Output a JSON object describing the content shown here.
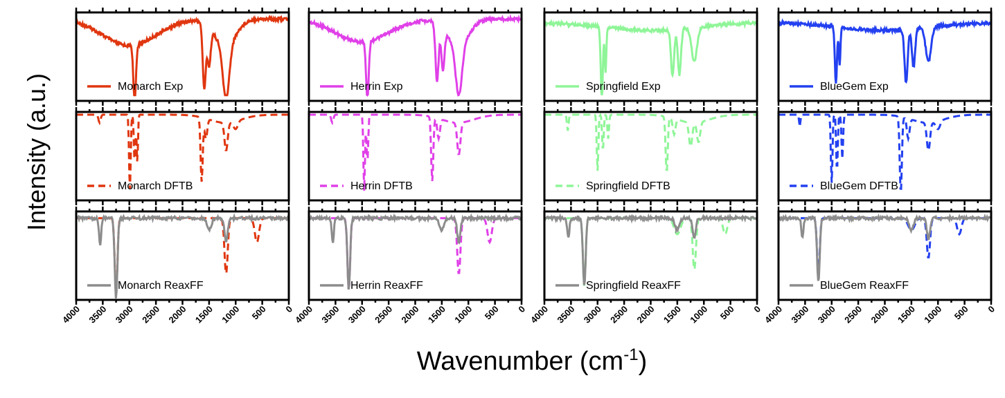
{
  "figure": {
    "ylabel": "Intensity (a.u.)",
    "xlabel_main": "Wavenumber (cm",
    "xlabel_sup": "-1",
    "xlabel_close": ")"
  },
  "chart_data": {
    "type": "line",
    "description_axes": {
      "x_ticks": [
        "4000",
        "3500",
        "3000",
        "2500",
        "2000",
        "1500",
        "1000",
        "500",
        "0"
      ],
      "xlim": [
        4000,
        0
      ],
      "x_reversed": true
    },
    "colors": {
      "Monarch": "#e0360f",
      "Herrin": "#e040e8",
      "Springfield": "#8ff598",
      "BlueGem": "#2340f0",
      "ReaxFF": "#8c8c8c"
    },
    "columns": [
      "Monarch",
      "Herrin",
      "Springfield",
      "BlueGem"
    ],
    "rows": [
      "Exp",
      "DFTB",
      "ReaxFF"
    ],
    "panels": [
      [
        {
          "legend": "Monarch Exp",
          "style": "solid",
          "color": "#e0360f",
          "peaks": [
            [
              2900,
              0.75,
              25
            ],
            [
              1590,
              0.85,
              30
            ],
            [
              1180,
              0.7,
              60
            ],
            [
              1500,
              0.5,
              30
            ]
          ],
          "baseline": 0.05,
          "broad": [
            [
              3000,
              0.35,
              500
            ],
            [
              1200,
              0.35,
              200
            ]
          ]
        },
        {
          "legend": "Herrin Exp",
          "style": "solid",
          "color": "#e040e8",
          "peaks": [
            [
              2900,
              0.75,
              25
            ],
            [
              1590,
              0.75,
              30
            ],
            [
              1180,
              0.65,
              60
            ],
            [
              1480,
              0.55,
              30
            ]
          ],
          "baseline": 0.05,
          "broad": [
            [
              3000,
              0.3,
              500
            ],
            [
              1200,
              0.35,
              200
            ]
          ]
        },
        {
          "legend": "Springfield Exp",
          "style": "solid",
          "color": "#8ff598",
          "peaks": [
            [
              2920,
              0.95,
              20
            ],
            [
              2850,
              0.6,
              15
            ],
            [
              1590,
              0.6,
              30
            ],
            [
              1460,
              0.6,
              30
            ],
            [
              1180,
              0.45,
              50
            ]
          ],
          "baseline": 0.1,
          "broad": [
            [
              2000,
              0.1,
              800
            ]
          ]
        },
        {
          "legend": "BlueGem Exp",
          "style": "solid",
          "color": "#2340f0",
          "peaks": [
            [
              2920,
              0.75,
              20
            ],
            [
              2850,
              0.5,
              15
            ],
            [
              1600,
              0.7,
              30
            ],
            [
              1460,
              0.5,
              30
            ],
            [
              1180,
              0.45,
              50
            ]
          ],
          "baseline": 0.1,
          "broad": [
            [
              2000,
              0.1,
              800
            ]
          ]
        }
      ],
      [
        {
          "legend": "Monarch DFTB",
          "style": "dashed",
          "color": "#e0360f",
          "peaks": [
            [
              3560,
              0.1,
              20
            ],
            [
              2990,
              0.95,
              15
            ],
            [
              2900,
              0.6,
              15
            ],
            [
              2850,
              0.6,
              12
            ],
            [
              1640,
              0.8,
              20
            ],
            [
              1560,
              0.25,
              25
            ],
            [
              1180,
              0.35,
              30
            ],
            [
              1000,
              0.1,
              40
            ]
          ],
          "baseline": 0.0,
          "broad": [
            [
              1200,
              0.1,
              300
            ]
          ]
        },
        {
          "legend": "Herrin DFTB",
          "style": "dashed",
          "color": "#e040e8",
          "peaks": [
            [
              3560,
              0.1,
              20
            ],
            [
              2960,
              0.95,
              15
            ],
            [
              2900,
              0.6,
              15
            ],
            [
              1680,
              0.8,
              20
            ],
            [
              1560,
              0.25,
              25
            ],
            [
              1180,
              0.4,
              30
            ]
          ],
          "baseline": 0.0,
          "broad": [
            [
              1200,
              0.1,
              300
            ]
          ]
        },
        {
          "legend": "Springfield DFTB",
          "style": "dashed",
          "color": "#8ff598",
          "peaks": [
            [
              3560,
              0.2,
              15
            ],
            [
              3000,
              0.7,
              15
            ],
            [
              2900,
              0.45,
              15
            ],
            [
              2800,
              0.3,
              15
            ],
            [
              1700,
              0.7,
              20
            ],
            [
              1560,
              0.2,
              25
            ],
            [
              1250,
              0.3,
              30
            ],
            [
              1100,
              0.25,
              30
            ]
          ],
          "baseline": 0.0,
          "broad": [
            [
              1200,
              0.1,
              300
            ]
          ]
        },
        {
          "legend": "BlueGem DFTB",
          "style": "dashed",
          "color": "#2340f0",
          "peaks": [
            [
              3600,
              0.15,
              12
            ],
            [
              3000,
              0.85,
              15
            ],
            [
              2900,
              0.7,
              15
            ],
            [
              2800,
              0.55,
              15
            ],
            [
              1700,
              0.95,
              20
            ],
            [
              1560,
              0.25,
              25
            ],
            [
              1180,
              0.35,
              30
            ],
            [
              1000,
              0.1,
              40
            ]
          ],
          "baseline": 0.0,
          "broad": [
            [
              1200,
              0.1,
              300
            ]
          ]
        }
      ],
      [
        {
          "legend": "Monarch ReaxFF",
          "style": "solid",
          "color": "#8c8c8c",
          "overlay": {
            "color": "#e0360f",
            "peaks": [
              [
                3250,
                0.95,
                25
              ],
              [
                1180,
                0.7,
                30
              ],
              [
                600,
                0.3,
                40
              ]
            ]
          },
          "peaks": [
            [
              3550,
              0.35,
              20
            ],
            [
              3250,
              1.0,
              25
            ],
            [
              1500,
              0.15,
              40
            ],
            [
              1180,
              0.3,
              30
            ]
          ],
          "baseline": 0.05
        },
        {
          "legend": "Herrin ReaxFF",
          "style": "solid",
          "color": "#8c8c8c",
          "overlay": {
            "color": "#e040e8",
            "peaks": [
              [
                3250,
                0.9,
                25
              ],
              [
                1180,
                0.7,
                30
              ],
              [
                600,
                0.3,
                40
              ]
            ]
          },
          "peaks": [
            [
              3550,
              0.3,
              20
            ],
            [
              3250,
              0.9,
              25
            ],
            [
              1500,
              0.15,
              40
            ],
            [
              1180,
              0.3,
              30
            ]
          ],
          "baseline": 0.05
        },
        {
          "legend": "Springfield ReaxFF",
          "style": "solid",
          "color": "#8c8c8c",
          "overlay": {
            "color": "#8ff598",
            "peaks": [
              [
                3250,
                0.85,
                25
              ],
              [
                1180,
                0.65,
                30
              ],
              [
                1500,
                0.2,
                60
              ],
              [
                600,
                0.2,
                40
              ]
            ]
          },
          "peaks": [
            [
              3550,
              0.25,
              20
            ],
            [
              3250,
              0.85,
              25
            ],
            [
              1500,
              0.15,
              40
            ],
            [
              1180,
              0.25,
              30
            ]
          ],
          "baseline": 0.05
        },
        {
          "legend": "BlueGem ReaxFF",
          "style": "solid",
          "color": "#8c8c8c",
          "overlay": {
            "color": "#2340f0",
            "peaks": [
              [
                3250,
                0.7,
                25
              ],
              [
                1180,
                0.5,
                30
              ],
              [
                1500,
                0.15,
                60
              ],
              [
                600,
                0.2,
                40
              ]
            ]
          },
          "peaks": [
            [
              3550,
              0.25,
              20
            ],
            [
              3250,
              0.8,
              25
            ],
            [
              1500,
              0.15,
              40
            ],
            [
              1180,
              0.25,
              30
            ]
          ],
          "baseline": 0.05
        }
      ]
    ]
  }
}
